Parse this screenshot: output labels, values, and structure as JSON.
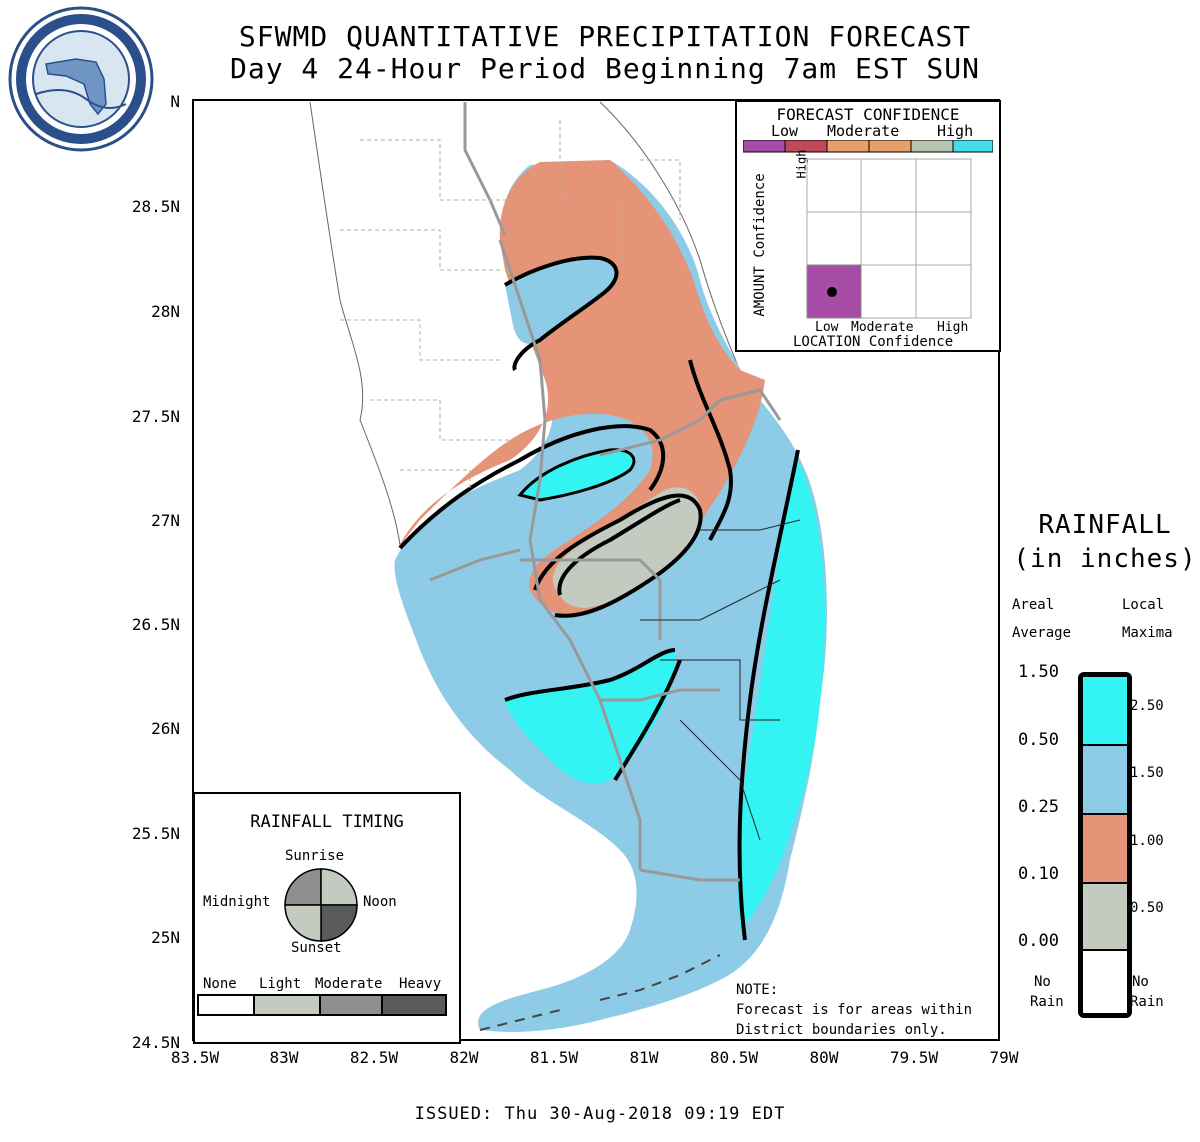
{
  "title_line1": "SFWMD QUANTITATIVE PRECIPITATION FORECAST",
  "title_line2": "Day 4 24-Hour Period Beginning 7am EST SUN",
  "issued": "ISSUED:  Thu 30-Aug-2018 09:19 EDT",
  "lat_labels": [
    "N",
    "28.5N",
    "28N",
    "27.5N",
    "27N",
    "26.5N",
    "26N",
    "25.5N",
    "25N",
    "24.5N"
  ],
  "lon_labels": [
    "83.5W",
    "83W",
    "82.5W",
    "82W",
    "81.5W",
    "81W",
    "80.5W",
    "80W",
    "79.5W",
    "79W"
  ],
  "forecast_confidence": {
    "title": "FORECAST CONFIDENCE",
    "scale_labels": [
      "Low",
      "Moderate",
      "High"
    ],
    "bar_colors": [
      "#a64ca6",
      "#c04a5a",
      "#e8a06a",
      "#e8a06a",
      "#b8c4b0",
      "#44ddee"
    ],
    "amount_axis": "AMOUNT Confidence",
    "location_axis": "LOCATION Confidence",
    "grid_labels": [
      "Low",
      "Moderate",
      "High"
    ],
    "selected": {
      "amount": "Low",
      "location": "Low"
    }
  },
  "legend": {
    "title1": "RAINFALL",
    "title2": "(in inches)",
    "col_left": "Areal",
    "col_left2": "Average",
    "col_right": "Local",
    "col_right2": "Maxima",
    "areal": [
      "1.50",
      "0.50",
      "0.25",
      "0.10",
      "0.00"
    ],
    "maxima": [
      "2.50",
      "1.50",
      "1.00",
      "0.50"
    ],
    "no_rain_left": [
      "No",
      "Rain"
    ],
    "no_rain_right": [
      "No",
      "Rain"
    ],
    "colors": [
      "#33f3f3",
      "#8ecbe6",
      "#e59478",
      "#c3cbc0",
      "#ffffff"
    ]
  },
  "timing": {
    "title": "RAINFALL TIMING",
    "sunrise": "Sunrise",
    "sunset": "Sunset",
    "midnight": "Midnight",
    "noon": "Noon",
    "scale": [
      "None",
      "Light",
      "Moderate",
      "Heavy"
    ],
    "scale_colors": [
      "#ffffff",
      "#c3cbc0",
      "#8f8f8f",
      "#5a5a5a"
    ]
  },
  "note": {
    "title": "NOTE:",
    "line1": "Forecast is for areas within",
    "line2": "District boundaries only."
  },
  "colors": {
    "cyan": "#33f3f3",
    "lightblue": "#8ecbe6",
    "salmon": "#e59478",
    "gray": "#c3cbc0"
  }
}
